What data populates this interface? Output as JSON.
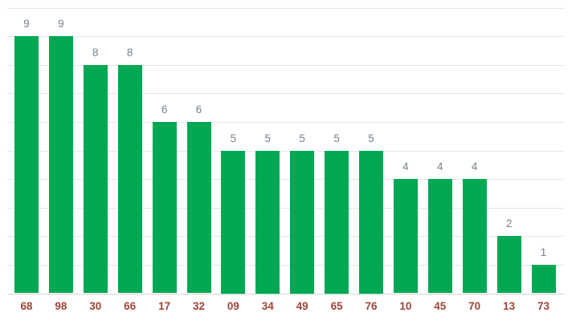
{
  "chart_data": {
    "type": "bar",
    "title": "",
    "xlabel": "",
    "ylabel": "",
    "categories": [
      "68",
      "98",
      "30",
      "66",
      "17",
      "32",
      "09",
      "34",
      "49",
      "65",
      "76",
      "10",
      "45",
      "70",
      "13",
      "73"
    ],
    "values": [
      9,
      9,
      8,
      8,
      6,
      6,
      5,
      5,
      5,
      5,
      5,
      4,
      4,
      4,
      2,
      1
    ],
    "data_labels_shown": true,
    "ylim": [
      0,
      10
    ],
    "gridline_step": 1,
    "grid": true,
    "legend": "none",
    "colors": {
      "bar": "#00a854",
      "value_label": "#75828c",
      "category_label": "#9e4538",
      "gridline": "#e6e6e6",
      "axis_line": "#d4d4d4",
      "background": "#ffffff"
    }
  }
}
